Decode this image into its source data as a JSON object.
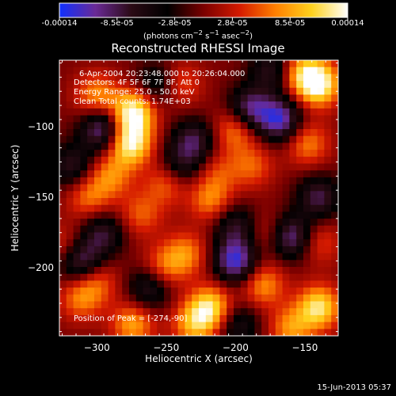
{
  "colorbar": {
    "ticks": [
      "-0.00014",
      "-8.5e-05",
      "-2.8e-05",
      "2.8e-05",
      "8.5e-05",
      "0.00014"
    ],
    "units_html": "(photons cm<sup>−2</sup> s<sup>−1</sup> asec<sup>−2</sup>)",
    "colors": [
      "#1030ff",
      "#6a2a96",
      "#2a0a14",
      "#000000",
      "#7a0000",
      "#d41a00",
      "#ff8000",
      "#ffd21e",
      "#ffffff"
    ]
  },
  "title": "Reconstructed RHESSI Image",
  "annotations": [
    "6-Apr-2004 20:23:48.000 to 20:26:04.000",
    "Detectors: 4F 5F 6F 7F 8F, Att 0",
    "Energy Range: 25.0 - 50.0 keV",
    "Clean    Total counts: 1.74E+03"
  ],
  "peak_text": "Position of Peak = [-274,-90]",
  "footer": "15-Jun-2013 05:37",
  "chart_data": {
    "type": "heatmap",
    "title": "Reconstructed RHESSI Image",
    "xlabel": "Heliocentric X (arcsec)",
    "ylabel": "Heliocentric Y (arcsec)",
    "xlim": [
      -327,
      -126
    ],
    "ylim": [
      -248,
      -53
    ],
    "x_ticks": [
      -300,
      -250,
      -200,
      -150
    ],
    "y_ticks": [
      -100,
      -150,
      -200
    ],
    "x_tick_labels": [
      "−300",
      "−250",
      "−200",
      "−150"
    ],
    "y_tick_labels": [
      "−100",
      "−150",
      "−200"
    ],
    "value_range": [
      -0.00014,
      0.00014
    ],
    "units": "photons cm-2 s-1 asec-2",
    "peak": {
      "x": -274,
      "y": -90
    },
    "blobs": [
      {
        "x": -274,
        "y": -90,
        "v": 1.0
      },
      {
        "x": -276,
        "y": -112,
        "v": 0.95
      },
      {
        "x": -300,
        "y": -78,
        "v": 0.55
      },
      {
        "x": -240,
        "y": -70,
        "v": 0.4
      },
      {
        "x": -290,
        "y": -135,
        "v": 0.5
      },
      {
        "x": -306,
        "y": -150,
        "v": 0.45
      },
      {
        "x": -250,
        "y": -140,
        "v": 0.45
      },
      {
        "x": -268,
        "y": -162,
        "v": 0.4
      },
      {
        "x": -218,
        "y": -152,
        "v": 0.5
      },
      {
        "x": -212,
        "y": -132,
        "v": 0.3
      },
      {
        "x": -200,
        "y": -102,
        "v": 0.55
      },
      {
        "x": -188,
        "y": -128,
        "v": 0.4
      },
      {
        "x": -148,
        "y": -112,
        "v": 0.5
      },
      {
        "x": -140,
        "y": -70,
        "v": 0.95
      },
      {
        "x": -152,
        "y": -62,
        "v": 0.6
      },
      {
        "x": -236,
        "y": -190,
        "v": 0.5
      },
      {
        "x": -252,
        "y": -200,
        "v": 0.45
      },
      {
        "x": -218,
        "y": -228,
        "v": 0.8
      },
      {
        "x": -230,
        "y": -240,
        "v": 0.6
      },
      {
        "x": -180,
        "y": -212,
        "v": 0.55
      },
      {
        "x": -140,
        "y": -228,
        "v": 0.85
      },
      {
        "x": -160,
        "y": -243,
        "v": 0.55
      },
      {
        "x": -312,
        "y": -222,
        "v": 0.45
      },
      {
        "x": -300,
        "y": -210,
        "v": 0.4
      },
      {
        "x": -274,
        "y": -240,
        "v": 0.6
      },
      {
        "x": -140,
        "y": -182,
        "v": 0.35
      },
      {
        "x": -176,
        "y": -175,
        "v": 0.3
      },
      {
        "x": -322,
        "y": -185,
        "v": 0.35
      },
      {
        "x": -296,
        "y": -102,
        "v": -0.8
      },
      {
        "x": -190,
        "y": -88,
        "v": -0.75
      },
      {
        "x": -168,
        "y": -95,
        "v": -0.85
      },
      {
        "x": -160,
        "y": -178,
        "v": -0.8
      },
      {
        "x": -312,
        "y": -195,
        "v": -0.75
      },
      {
        "x": -230,
        "y": -110,
        "v": -0.6
      },
      {
        "x": -200,
        "y": -195,
        "v": -0.9
      },
      {
        "x": -296,
        "y": -176,
        "v": -0.55
      },
      {
        "x": -240,
        "y": -128,
        "v": -0.45
      },
      {
        "x": -262,
        "y": -214,
        "v": -0.55
      },
      {
        "x": -318,
        "y": -128,
        "v": -0.5
      },
      {
        "x": -200,
        "y": -170,
        "v": -0.5
      },
      {
        "x": -140,
        "y": -150,
        "v": -0.6
      },
      {
        "x": -256,
        "y": -70,
        "v": -0.45
      },
      {
        "x": -174,
        "y": -60,
        "v": -0.5
      },
      {
        "x": -198,
        "y": -240,
        "v": -0.45
      }
    ]
  }
}
